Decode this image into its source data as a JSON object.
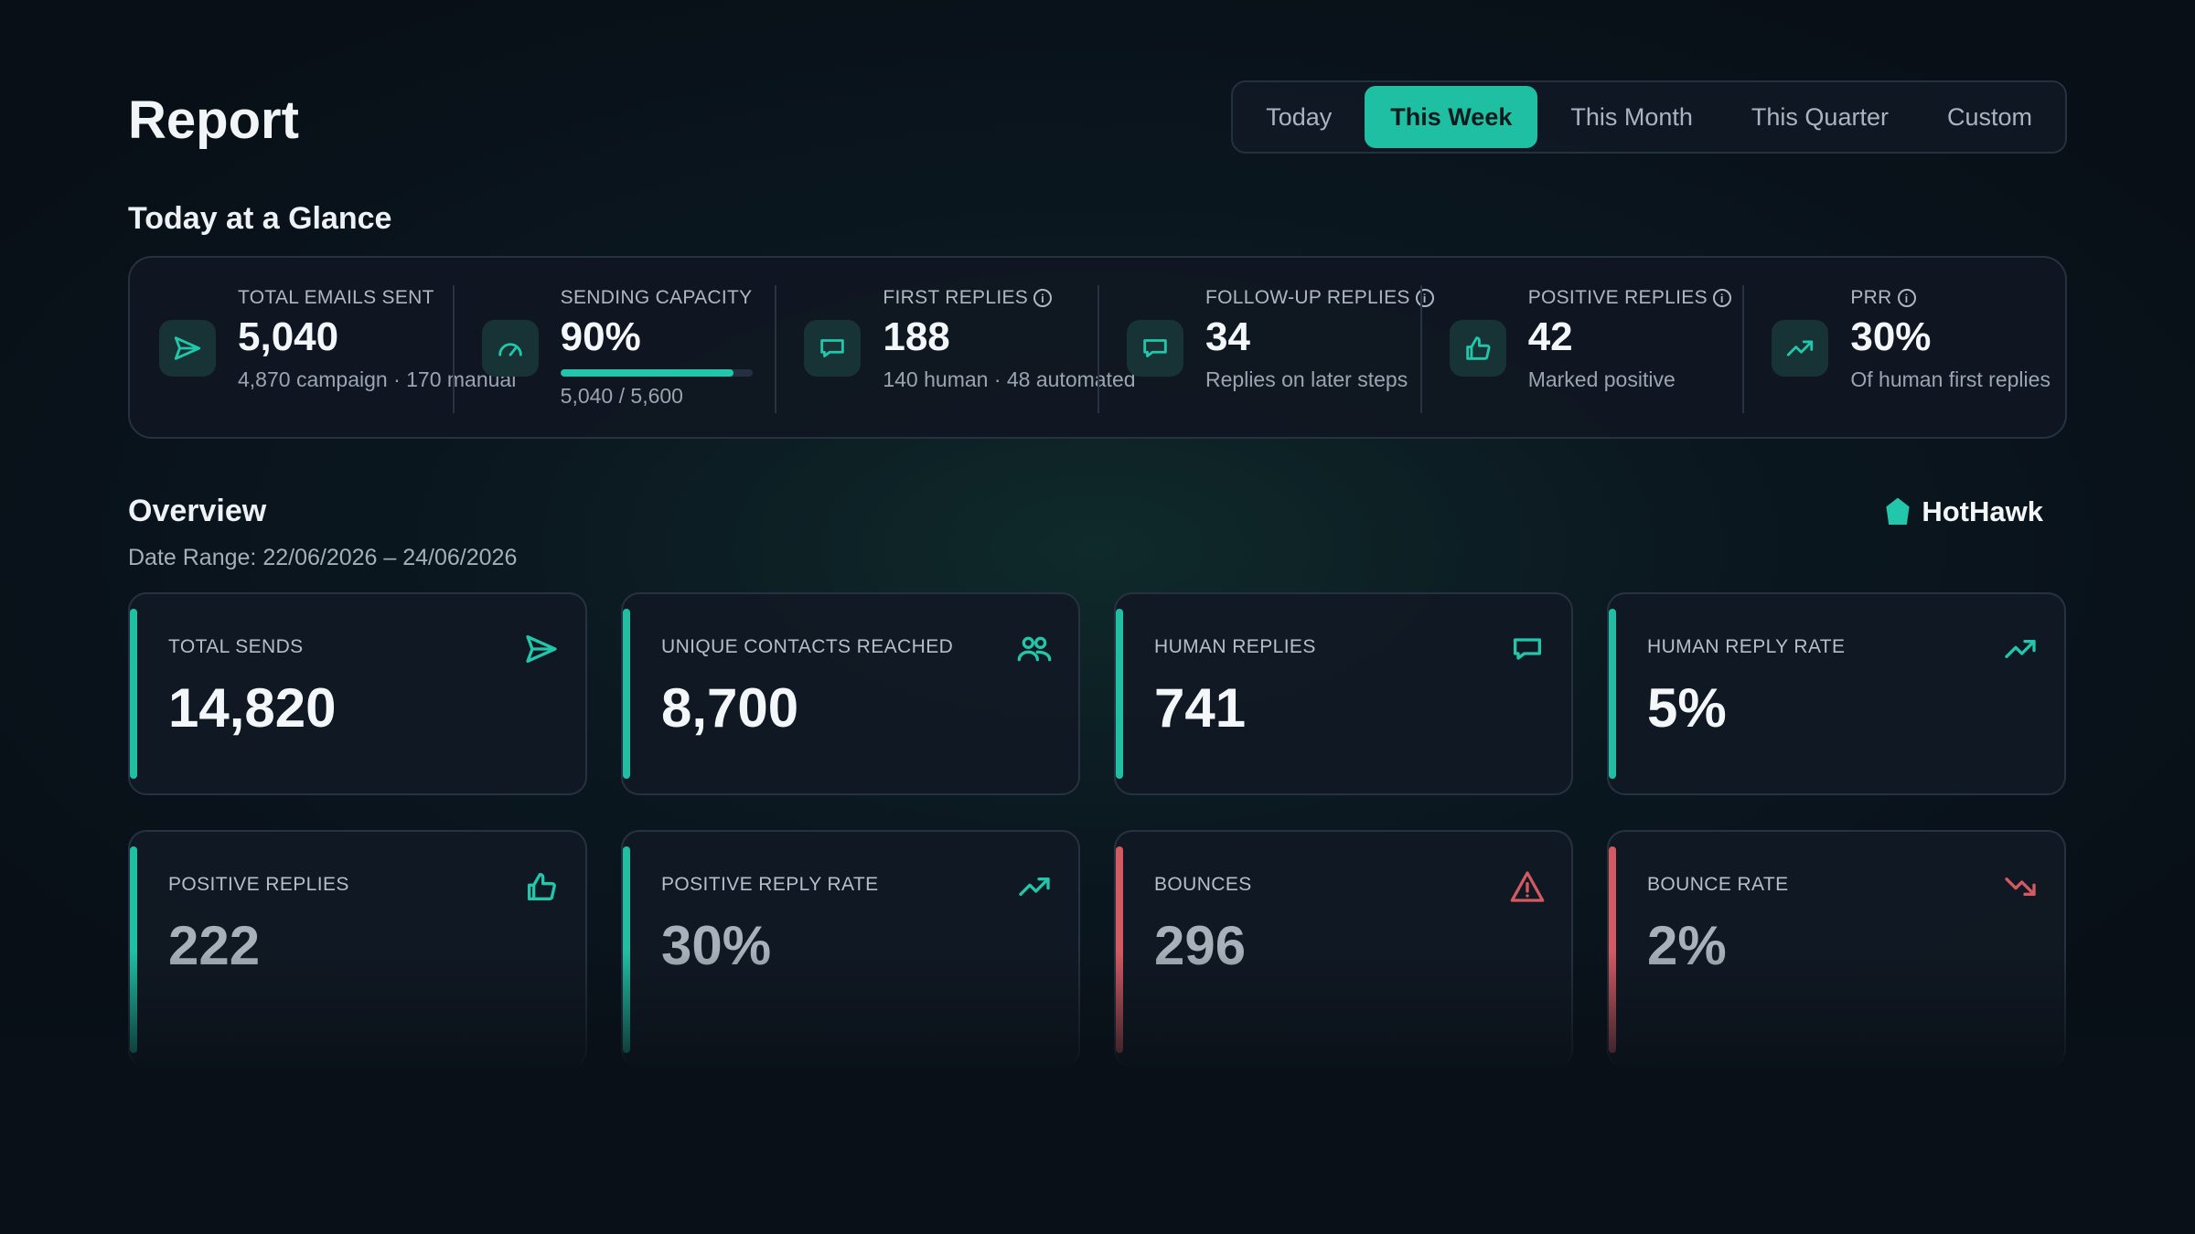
{
  "header": {
    "title": "Report",
    "range_tabs": [
      {
        "label": "Today",
        "active": false
      },
      {
        "label": "This Week",
        "active": true
      },
      {
        "label": "This Month",
        "active": false
      },
      {
        "label": "This Quarter",
        "active": false
      },
      {
        "label": "Custom",
        "active": false
      }
    ]
  },
  "glance": {
    "title": "Today at a Glance",
    "items": [
      {
        "label": "TOTAL EMAILS SENT",
        "value": "5,040",
        "sub": "4,870 campaign · 170 manual",
        "icon": "send-icon",
        "info": false
      },
      {
        "label": "SENDING CAPACITY",
        "value": "90%",
        "sub": "5,040 / 5,600",
        "icon": "gauge-icon",
        "info": false,
        "progress": 0.9
      },
      {
        "label": "FIRST REPLIES",
        "value": "188",
        "sub": "140 human · 48 automated",
        "icon": "chat-icon",
        "info": true
      },
      {
        "label": "FOLLOW-UP REPLIES",
        "value": "34",
        "sub": "Replies on later steps",
        "icon": "chat-icon",
        "info": true
      },
      {
        "label": "POSITIVE REPLIES",
        "value": "42",
        "sub": "Marked positive",
        "icon": "thumbs-up-icon",
        "info": true
      },
      {
        "label": "PRR",
        "value": "30%",
        "sub": "Of human first replies",
        "icon": "trend-up-icon",
        "info": true
      }
    ]
  },
  "overview": {
    "title": "Overview",
    "date_range": "Date Range: 22/06/2026 – 24/06/2026",
    "brand": "HotHawk",
    "metrics_row1": [
      {
        "label": "TOTAL SENDS",
        "value": "14,820",
        "icon": "send-icon"
      },
      {
        "label": "UNIQUE CONTACTS REACHED",
        "value": "8,700",
        "icon": "users-icon"
      },
      {
        "label": "HUMAN REPLIES",
        "value": "741",
        "icon": "chat-icon"
      },
      {
        "label": "HUMAN REPLY RATE",
        "value": "5%",
        "icon": "trend-up-icon"
      }
    ],
    "metrics_row2": [
      {
        "label": "POSITIVE REPLIES",
        "value": "222",
        "icon": "thumbs-up-icon"
      },
      {
        "label": "POSITIVE REPLY RATE",
        "value": "30%",
        "icon": "trend-up-icon"
      },
      {
        "label": "BOUNCES",
        "value": "296",
        "icon": "warning-icon"
      },
      {
        "label": "BOUNCE RATE",
        "value": "2%",
        "icon": "trend-down-icon"
      }
    ]
  },
  "colors": {
    "accent": "#1fbfa4",
    "danger": "#d45a62",
    "background": "#0b1820"
  }
}
